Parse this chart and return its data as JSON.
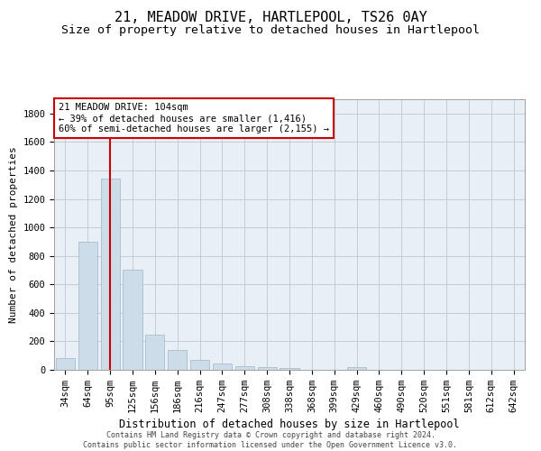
{
  "title": "21, MEADOW DRIVE, HARTLEPOOL, TS26 0AY",
  "subtitle": "Size of property relative to detached houses in Hartlepool",
  "xlabel": "Distribution of detached houses by size in Hartlepool",
  "ylabel": "Number of detached properties",
  "categories": [
    "34sqm",
    "64sqm",
    "95sqm",
    "125sqm",
    "156sqm",
    "186sqm",
    "216sqm",
    "247sqm",
    "277sqm",
    "308sqm",
    "338sqm",
    "368sqm",
    "399sqm",
    "429sqm",
    "460sqm",
    "490sqm",
    "520sqm",
    "551sqm",
    "581sqm",
    "612sqm",
    "642sqm"
  ],
  "values": [
    80,
    900,
    1340,
    700,
    245,
    140,
    70,
    45,
    25,
    20,
    15,
    0,
    0,
    20,
    0,
    0,
    0,
    0,
    0,
    0,
    0
  ],
  "bar_color": "#ccdce8",
  "bar_edge_color": "#aabdd0",
  "red_line_x": 2.0,
  "annotation_text": "21 MEADOW DRIVE: 104sqm\n← 39% of detached houses are smaller (1,416)\n60% of semi-detached houses are larger (2,155) →",
  "annotation_box_color": "#ffffff",
  "annotation_box_edge_color": "#cc0000",
  "red_line_color": "#cc0000",
  "ylim": [
    0,
    1900
  ],
  "yticks": [
    0,
    200,
    400,
    600,
    800,
    1000,
    1200,
    1400,
    1600,
    1800
  ],
  "bg_color": "#ffffff",
  "plot_bg_color": "#e8eff5",
  "grid_color": "#c0cdd8",
  "footer_text": "Contains HM Land Registry data © Crown copyright and database right 2024.\nContains public sector information licensed under the Open Government Licence v3.0.",
  "title_fontsize": 11,
  "subtitle_fontsize": 9.5,
  "xlabel_fontsize": 8.5,
  "ylabel_fontsize": 8,
  "tick_fontsize": 7.5,
  "annotation_fontsize": 7.5,
  "footer_fontsize": 6
}
